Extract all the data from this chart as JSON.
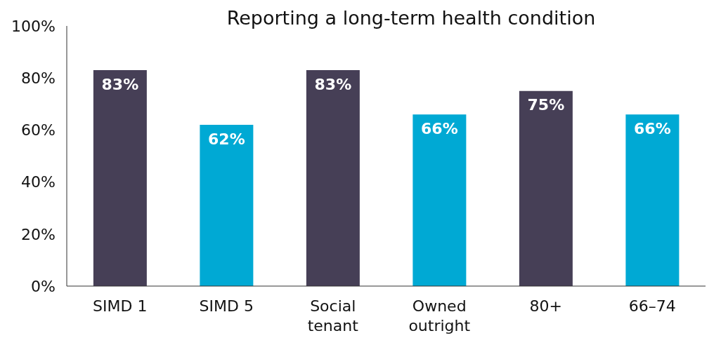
{
  "chart_data": {
    "type": "bar",
    "title": "Reporting a long-term health condition",
    "categories": [
      "SIMD 1",
      "SIMD 5",
      "Social tenant",
      "Owned outright",
      "80+",
      "66–74"
    ],
    "values": [
      83,
      62,
      83,
      66,
      75,
      66
    ],
    "colors": [
      "#463f56",
      "#00a9d4",
      "#463f56",
      "#00a9d4",
      "#463f56",
      "#00a9d4"
    ],
    "ylim": [
      0,
      100
    ],
    "yticks": [
      {
        "value": 0,
        "label": "0%"
      },
      {
        "value": 20,
        "label": "20%"
      },
      {
        "value": 40,
        "label": "40%"
      },
      {
        "value": 60,
        "label": "60%"
      },
      {
        "value": 80,
        "label": "80%"
      },
      {
        "value": 100,
        "label": "100%"
      }
    ],
    "value_labels": [
      "83%",
      "62%",
      "83%",
      "66%",
      "75%",
      "66%"
    ],
    "grid": false,
    "legend": false
  }
}
